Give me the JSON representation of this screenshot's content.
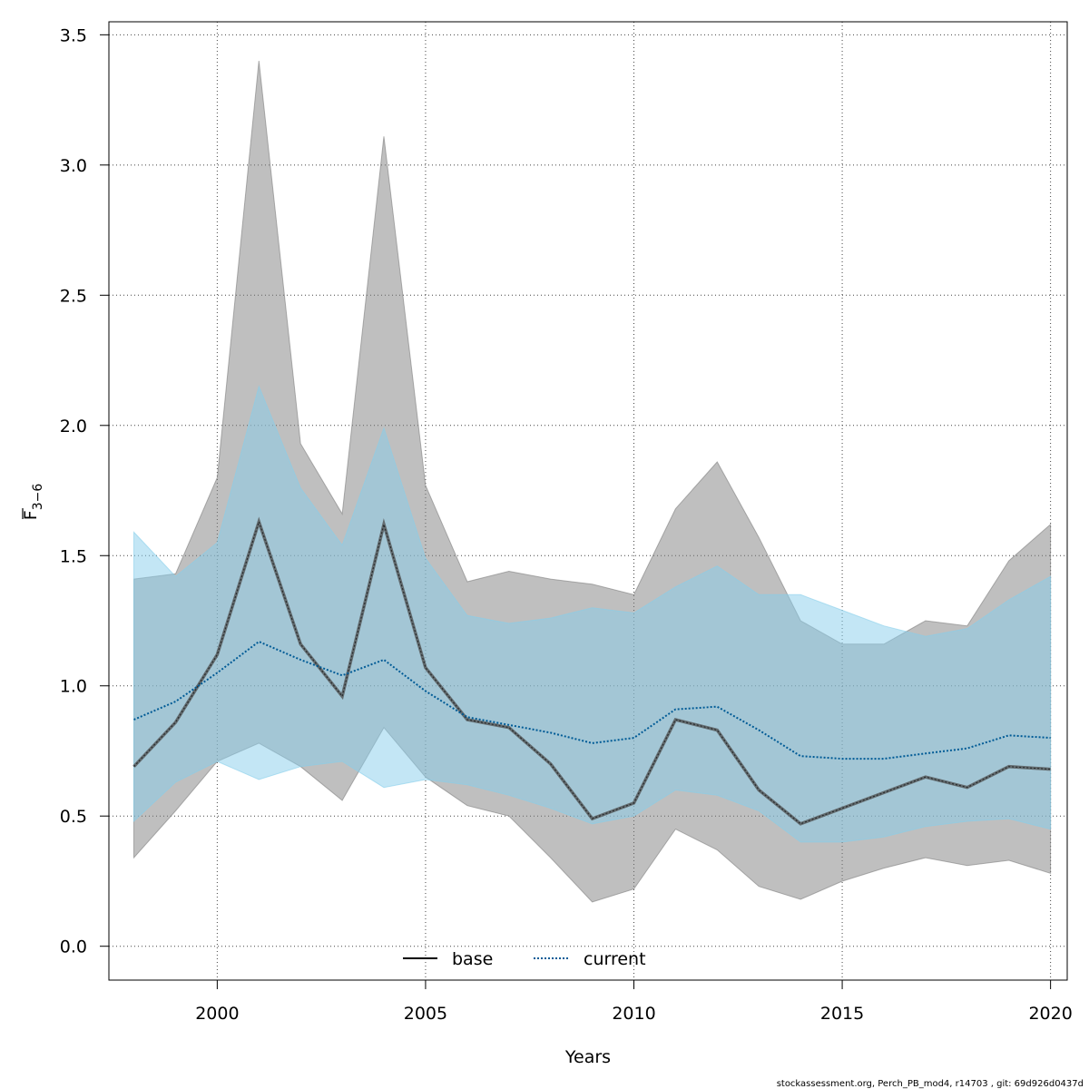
{
  "chart_data": {
    "type": "line",
    "xlabel": "Years",
    "ylabel": {
      "main": "F",
      "sub": "3−6"
    },
    "xlim": [
      1997.4,
      2020.4
    ],
    "ylim": [
      -0.13,
      3.55
    ],
    "xticks": [
      2000,
      2005,
      2010,
      2015,
      2020
    ],
    "yticks": [
      0.0,
      0.5,
      1.0,
      1.5,
      2.0,
      2.5,
      3.0,
      3.5
    ],
    "ytick_labels": [
      "0.0",
      "0.5",
      "1.0",
      "1.5",
      "2.0",
      "2.5",
      "3.0",
      "3.5"
    ],
    "grid": true,
    "legend_position": "bottom",
    "x": [
      1998,
      1999,
      2000,
      2001,
      2002,
      2003,
      2004,
      2005,
      2006,
      2007,
      2008,
      2009,
      2010,
      2011,
      2012,
      2013,
      2014,
      2015,
      2016,
      2017,
      2018,
      2019,
      2020
    ],
    "series": [
      {
        "name": "base",
        "color": "#000000",
        "band_color": "#7f7f7f",
        "line_style": "solid",
        "values": [
          0.69,
          0.86,
          1.12,
          1.63,
          1.16,
          0.96,
          1.62,
          1.07,
          0.87,
          0.84,
          0.7,
          0.49,
          0.55,
          0.87,
          0.83,
          0.6,
          0.47,
          0.53,
          0.59,
          0.65,
          0.61,
          0.69,
          0.68
        ],
        "lower": [
          0.34,
          0.52,
          0.71,
          0.78,
          0.69,
          0.56,
          0.84,
          0.65,
          0.54,
          0.5,
          0.34,
          0.17,
          0.22,
          0.45,
          0.37,
          0.23,
          0.18,
          0.25,
          0.3,
          0.34,
          0.31,
          0.33,
          0.28
        ],
        "upper": [
          1.41,
          1.43,
          1.8,
          3.4,
          1.93,
          1.66,
          3.11,
          1.77,
          1.4,
          1.44,
          1.41,
          1.39,
          1.35,
          1.68,
          1.86,
          1.57,
          1.25,
          1.16,
          1.16,
          1.25,
          1.23,
          1.48,
          1.62
        ]
      },
      {
        "name": "current",
        "color": "#005b96",
        "band_color": "#87ceeb",
        "line_style": "dotted",
        "values": [
          0.87,
          0.94,
          1.05,
          1.17,
          1.1,
          1.04,
          1.1,
          0.98,
          0.88,
          0.85,
          0.82,
          0.78,
          0.8,
          0.91,
          0.92,
          0.83,
          0.73,
          0.72,
          0.72,
          0.74,
          0.76,
          0.81,
          0.8
        ],
        "lower": [
          0.48,
          0.63,
          0.71,
          0.64,
          0.69,
          0.71,
          0.61,
          0.64,
          0.62,
          0.58,
          0.53,
          0.47,
          0.5,
          0.6,
          0.58,
          0.52,
          0.4,
          0.4,
          0.42,
          0.46,
          0.48,
          0.49,
          0.45
        ],
        "upper": [
          1.59,
          1.42,
          1.55,
          2.15,
          1.76,
          1.54,
          1.99,
          1.49,
          1.27,
          1.24,
          1.26,
          1.3,
          1.28,
          1.38,
          1.46,
          1.35,
          1.35,
          1.29,
          1.23,
          1.19,
          1.22,
          1.33,
          1.42
        ]
      }
    ]
  },
  "footer_text": "stockassessment.org, Perch_PB_mod4, r14703 , git: 69d926d0437d"
}
